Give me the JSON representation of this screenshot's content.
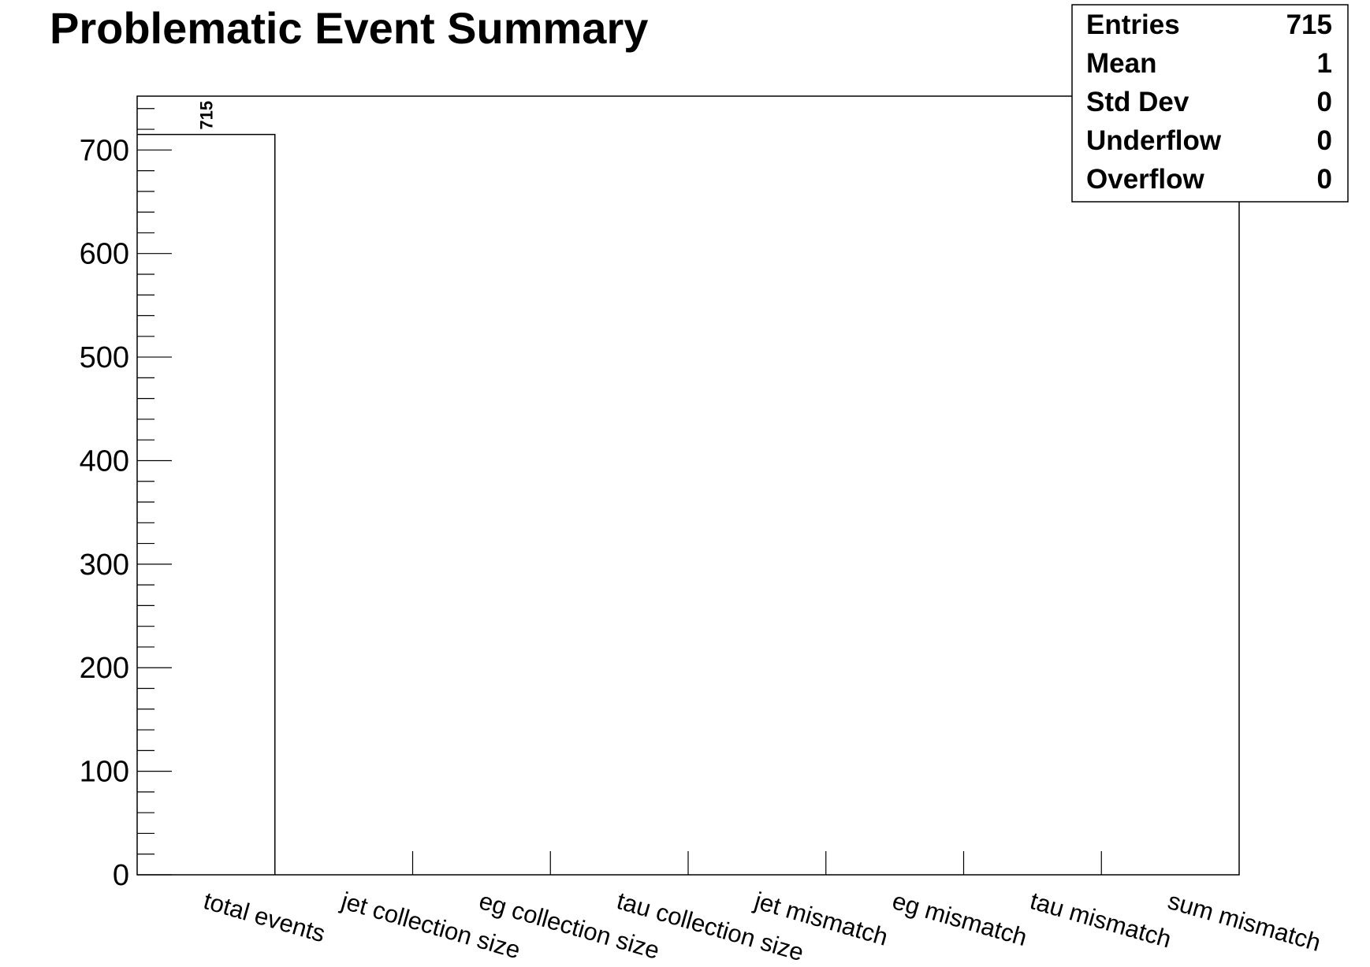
{
  "chart_data": {
    "type": "bar",
    "title": "Problematic Event Summary",
    "xlabel": "",
    "ylabel": "",
    "categories": [
      "total events",
      "jet collection size",
      "eg collection size",
      "tau collection size",
      "jet mismatch",
      "eg mismatch",
      "tau mismatch",
      "sum mismatch"
    ],
    "values": [
      715,
      0,
      0,
      0,
      0,
      0,
      0,
      0
    ],
    "data_labels": [
      "715"
    ],
    "ylim": [
      0,
      752
    ],
    "yticks": [
      0,
      100,
      200,
      300,
      400,
      500,
      600,
      700
    ],
    "grid": false,
    "stats_box": {
      "placement": "top-right",
      "rows": [
        {
          "label": "Entries",
          "value": "715"
        },
        {
          "label": "Mean",
          "value": "1"
        },
        {
          "label": "Std Dev",
          "value": "0"
        },
        {
          "label": "Underflow",
          "value": "0"
        },
        {
          "label": "Overflow",
          "value": "0"
        }
      ]
    }
  }
}
